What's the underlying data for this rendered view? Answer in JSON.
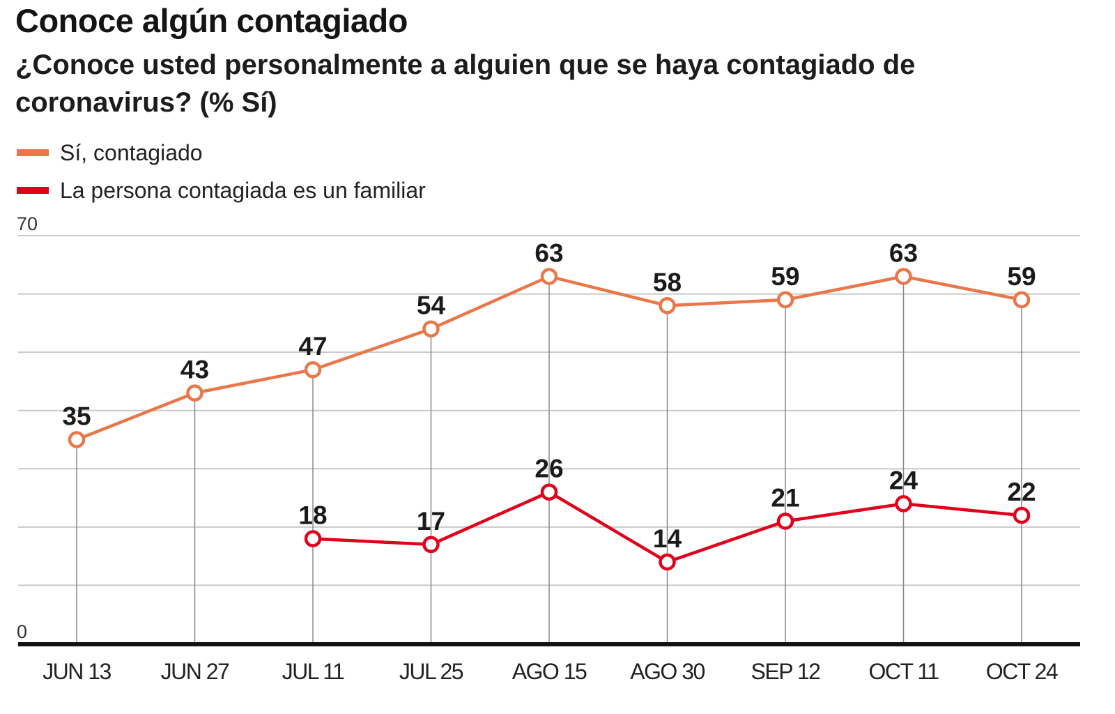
{
  "title": "Conoce algún contagiado",
  "subtitle": "¿Conoce usted personalmente a alguien que se haya contagiado de coronavirus? (% Sí)",
  "legend": [
    {
      "label": "Sí, contagiado",
      "color": "#e8784a"
    },
    {
      "label": "La persona contagiada es un familiar",
      "color": "#e0001b"
    }
  ],
  "chart_data": {
    "type": "line",
    "categories": [
      "JUN 13",
      "JUN 27",
      "JUL 11",
      "JUL 25",
      "AGO 15",
      "AGO 30",
      "SEP 12",
      "OCT 11",
      "OCT 24"
    ],
    "ylim": [
      0,
      70
    ],
    "yticks_labeled": [
      "0",
      "70"
    ],
    "grid": true,
    "gridlines": [
      0,
      10,
      20,
      30,
      40,
      50,
      60,
      70
    ],
    "legend_position": "top-left",
    "series": [
      {
        "name": "Sí, contagiado",
        "color": "#e8784a",
        "values": [
          35,
          43,
          47,
          54,
          63,
          58,
          59,
          63,
          59
        ]
      },
      {
        "name": "La persona contagiada es un familiar",
        "color": "#e0001b",
        "values": [
          null,
          null,
          18,
          17,
          26,
          14,
          21,
          24,
          22
        ]
      }
    ]
  }
}
